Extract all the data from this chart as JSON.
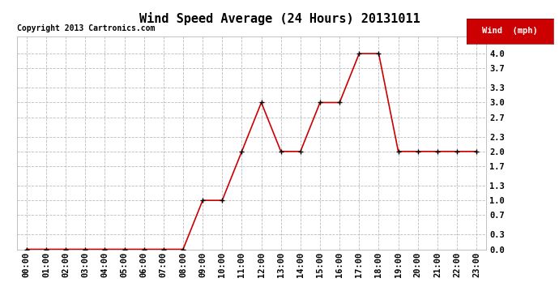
{
  "title": "Wind Speed Average (24 Hours) 20131011",
  "copyright": "Copyright 2013 Cartronics.com",
  "legend_label": "Wind  (mph)",
  "x_labels": [
    "00:00",
    "01:00",
    "02:00",
    "03:00",
    "04:00",
    "05:00",
    "06:00",
    "07:00",
    "08:00",
    "09:00",
    "10:00",
    "11:00",
    "12:00",
    "13:00",
    "14:00",
    "15:00",
    "16:00",
    "17:00",
    "18:00",
    "19:00",
    "20:00",
    "21:00",
    "22:00",
    "23:00"
  ],
  "y_values": [
    0.0,
    0.0,
    0.0,
    0.0,
    0.0,
    0.0,
    0.0,
    0.0,
    0.0,
    1.0,
    1.0,
    2.0,
    3.0,
    2.0,
    2.0,
    3.0,
    3.0,
    4.0,
    4.0,
    2.0,
    2.0,
    2.0,
    2.0,
    2.0
  ],
  "line_color": "#cc0000",
  "marker_color": "#000000",
  "legend_bg": "#cc0000",
  "legend_text_color": "#ffffff",
  "background_color": "#ffffff",
  "grid_color": "#bbbbbb",
  "title_fontsize": 11,
  "tick_fontsize": 7.5,
  "copyright_fontsize": 7,
  "ylim": [
    0.0,
    4.35
  ],
  "yticks": [
    0.0,
    0.3,
    0.7,
    1.0,
    1.3,
    1.7,
    2.0,
    2.3,
    2.7,
    3.0,
    3.3,
    3.7,
    4.0
  ]
}
